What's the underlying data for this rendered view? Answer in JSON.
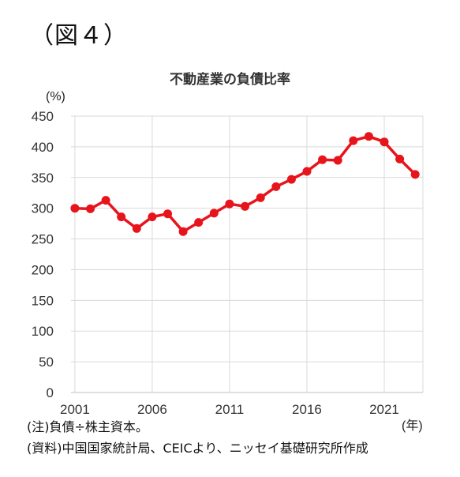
{
  "figure_label": "（図４）",
  "notes": {
    "note1": "(注)負債÷株主資本。",
    "note2": "(資料)中国国家統計局、CEICより、ニッセイ基礎研究所作成"
  },
  "chart_data": {
    "type": "line",
    "title": "不動産業の負債比率",
    "ylabel": "(%)",
    "xlabel": "(年)",
    "ylim": [
      0,
      450
    ],
    "yticks": [
      0,
      50,
      100,
      150,
      200,
      250,
      300,
      350,
      400,
      450
    ],
    "xlim": [
      2000.75,
      2023.5
    ],
    "xticks": [
      2001,
      2006,
      2011,
      2016,
      2021
    ],
    "grid": true,
    "colors": {
      "line": "#e8141b",
      "grid": "#d9d9d9",
      "axis": "#bfbfbf"
    },
    "series": [
      {
        "x": [
          2001,
          2002,
          2003,
          2004,
          2005,
          2006,
          2007,
          2008,
          2009,
          2010,
          2011,
          2012,
          2013,
          2014,
          2015,
          2016,
          2017,
          2018,
          2019,
          2020,
          2021,
          2022,
          2023
        ],
        "values": [
          300,
          299,
          313,
          286,
          267,
          286,
          291,
          262,
          277,
          292,
          307,
          303,
          317,
          335,
          347,
          360,
          379,
          378,
          410,
          417,
          408,
          380,
          355
        ]
      }
    ]
  }
}
